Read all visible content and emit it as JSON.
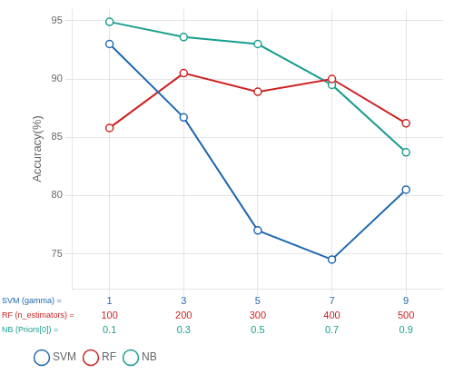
{
  "chart_data": {
    "type": "line",
    "ylabel": "Accuracy(%)",
    "series": [
      {
        "name": "SVM",
        "color": "#2068b0",
        "values": [
          93.0,
          86.7,
          77.0,
          74.5,
          80.5
        ]
      },
      {
        "name": "RF",
        "color": "#cc2222",
        "values": [
          85.8,
          90.5,
          88.9,
          90.0,
          86.2
        ]
      },
      {
        "name": "NB",
        "color": "#1a9e8f",
        "values": [
          94.9,
          93.6,
          93.0,
          89.5,
          83.7
        ]
      }
    ],
    "x_tick_rows": [
      {
        "name": "SVM (gamma) =",
        "color": "#2068b0",
        "labels": [
          1,
          3,
          5,
          7,
          9
        ]
      },
      {
        "name": "RF (n_estimators) =",
        "color": "#cc2222",
        "labels": [
          100,
          200,
          300,
          400,
          500
        ]
      },
      {
        "name": "NB (Priors[0]) =",
        "color": "#1a9e8f",
        "labels": [
          0.1,
          0.3,
          0.5,
          0.7,
          0.9
        ]
      }
    ],
    "ylim": [
      72,
      96
    ],
    "yticks": [
      75,
      80,
      85,
      90,
      95
    ],
    "marker": "circle",
    "grid": true,
    "legend": "lower left"
  }
}
